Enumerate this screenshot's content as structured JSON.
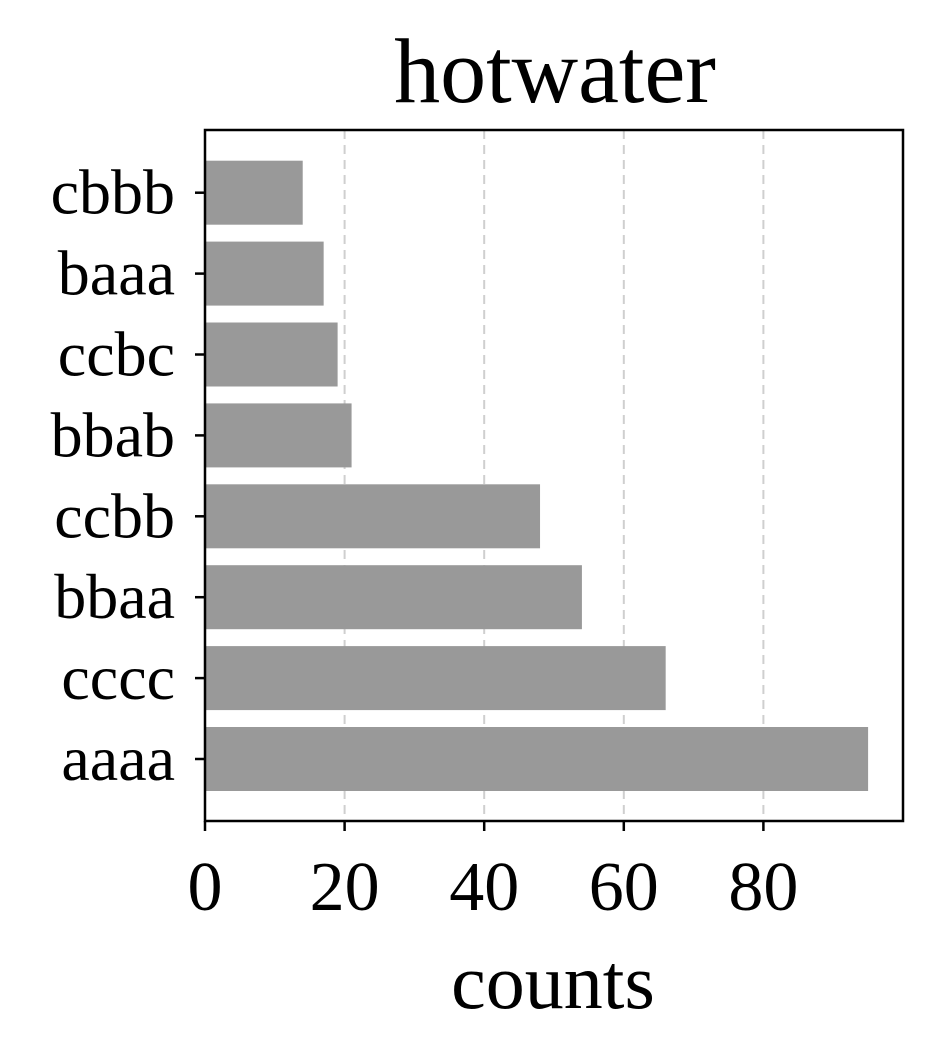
{
  "chart_data": {
    "type": "bar",
    "orientation": "horizontal",
    "title": "hotwater",
    "xlabel": "counts",
    "ylabel": "",
    "categories": [
      "aaaa",
      "cccc",
      "bbaa",
      "ccbb",
      "bbab",
      "ccbc",
      "baaa",
      "cbbb"
    ],
    "values": [
      95,
      66,
      54,
      48,
      21,
      19,
      17,
      14
    ],
    "xlim": [
      0,
      100
    ],
    "xticks": [
      0,
      20,
      40,
      60,
      80
    ],
    "xtick_labels": [
      "0",
      "20",
      "40",
      "60",
      "80"
    ],
    "grid": "x-dashed",
    "bar_color": "#999999",
    "grid_color": "#cfcfcf"
  }
}
